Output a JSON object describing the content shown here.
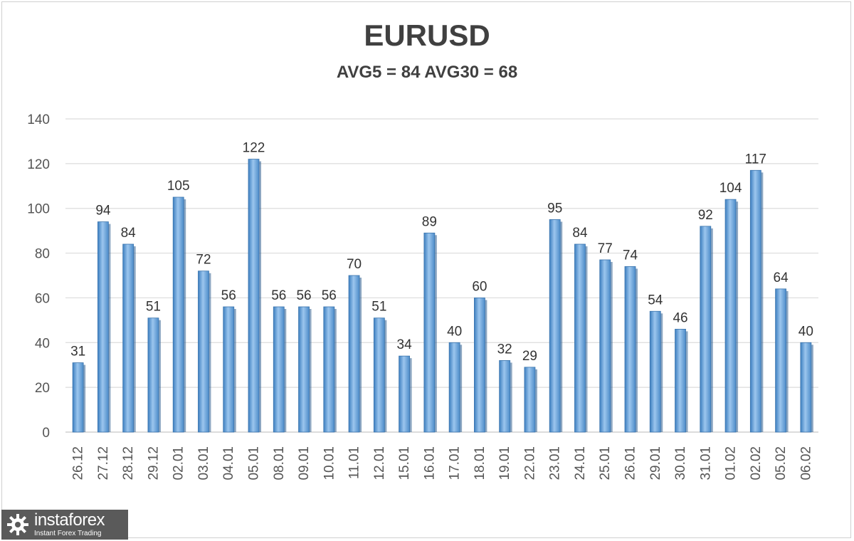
{
  "chart_data": {
    "type": "bar",
    "title": "EURUSD",
    "subtitle": "AVG5 = 84 AVG30 = 68",
    "categories": [
      "26.12",
      "27.12",
      "28.12",
      "29.12",
      "02.01",
      "03.01",
      "04.01",
      "05.01",
      "08.01",
      "09.01",
      "10.01",
      "11.01",
      "12.01",
      "15.01",
      "16.01",
      "17.01",
      "18.01",
      "19.01",
      "22.01",
      "23.01",
      "24.01",
      "25.01",
      "26.01",
      "29.01",
      "30.01",
      "31.01",
      "01.02",
      "02.02",
      "05.02",
      "06.02"
    ],
    "values": [
      31,
      94,
      84,
      51,
      105,
      72,
      56,
      122,
      56,
      56,
      56,
      70,
      51,
      34,
      89,
      40,
      60,
      32,
      29,
      95,
      84,
      77,
      74,
      54,
      46,
      92,
      104,
      117,
      64,
      40
    ],
    "ylim": [
      0,
      140
    ],
    "yticks": [
      0,
      20,
      40,
      60,
      80,
      100,
      120,
      140
    ],
    "grid": true,
    "legend": "none",
    "bar_color": "#5b9bd5"
  },
  "watermark": {
    "name": "instaforex",
    "tagline": "Instant Forex Trading"
  }
}
